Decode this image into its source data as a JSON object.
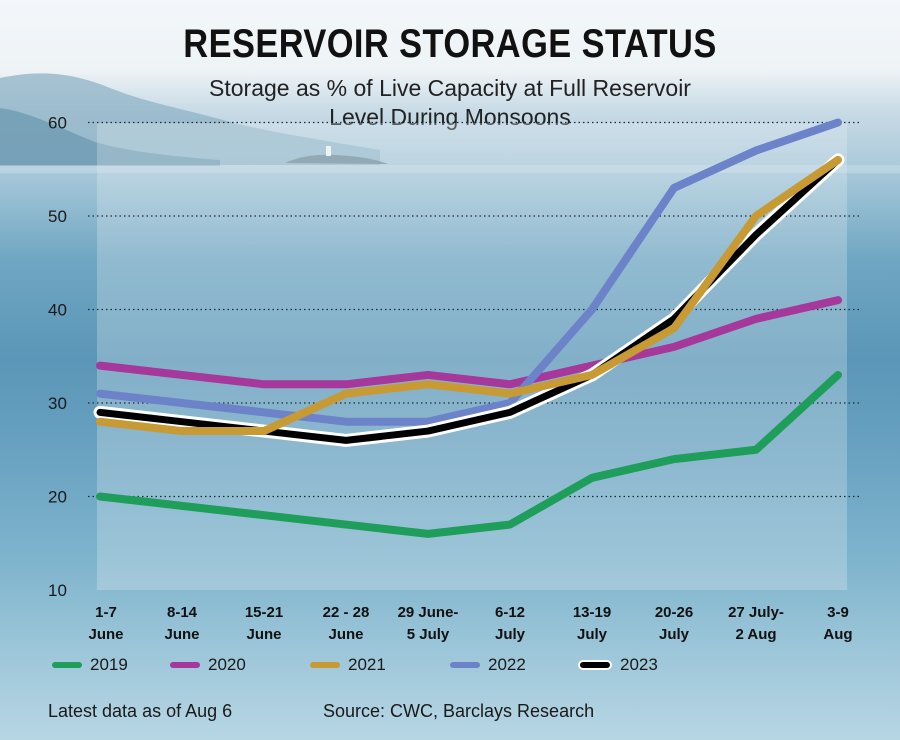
{
  "title": "RESERVOIR STORAGE STATUS",
  "subtitle_line1": "Storage as % of Live Capacity at Full Reservoir",
  "subtitle_line2": "Level During Monsoons",
  "footer_left": "Latest data as of Aug 6",
  "footer_right": "Source: CWC, Barclays Research",
  "colors": {
    "2019": "#1e9e5a",
    "2020": "#a6379b",
    "2021": "#c79a34",
    "2022": "#6c83c9",
    "2023": "#000000"
  },
  "chart_data": {
    "type": "line",
    "title": "RESERVOIR STORAGE STATUS",
    "ylabel": "Storage as % of Live Capacity at Full Reservoir Level During Monsoons",
    "ylim": [
      10,
      60
    ],
    "yticks": [
      10,
      20,
      30,
      40,
      50,
      60
    ],
    "grid": true,
    "legend_position": "bottom",
    "categories": [
      [
        "1-7",
        "June"
      ],
      [
        "8-14",
        "June"
      ],
      [
        "15-21",
        "June"
      ],
      [
        "22 - 28",
        "June"
      ],
      [
        "29 June-",
        "5 July"
      ],
      [
        "6-12",
        "July"
      ],
      [
        "13-19",
        "July"
      ],
      [
        "20-26",
        "July"
      ],
      [
        "27 July-",
        "2 Aug"
      ],
      [
        "3-9",
        "Aug"
      ]
    ],
    "series": [
      {
        "name": "2019",
        "values": [
          20,
          19,
          18,
          17,
          16,
          17,
          22,
          24,
          25,
          33
        ]
      },
      {
        "name": "2020",
        "values": [
          34,
          33,
          32,
          32,
          33,
          32,
          34,
          36,
          39,
          41
        ]
      },
      {
        "name": "2022",
        "values": [
          31,
          30,
          29,
          28,
          28,
          30,
          40,
          53,
          57,
          60
        ]
      },
      {
        "name": "2023",
        "values": [
          29,
          28,
          27,
          26,
          27,
          29,
          33,
          39,
          48,
          56
        ]
      },
      {
        "name": "2021",
        "values": [
          28,
          27,
          27,
          31,
          32,
          31,
          33,
          38,
          50,
          56
        ]
      }
    ],
    "legend_order": [
      "2019",
      "2020",
      "2021",
      "2022",
      "2023"
    ]
  }
}
